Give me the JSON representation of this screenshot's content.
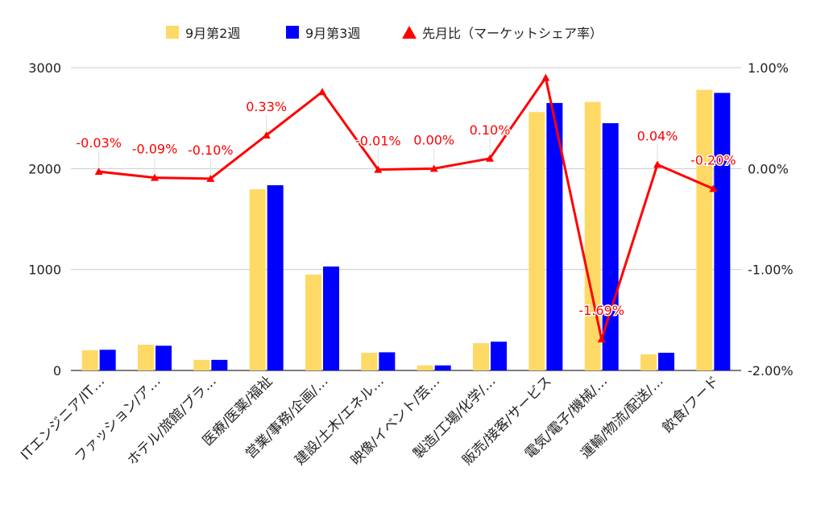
{
  "chart_data": {
    "type": "bar",
    "categories": [
      "ITエンジニア/IT…",
      "ファッション/ア…",
      "ホテル/旅館/ブラ…",
      "医療/医薬/福祉",
      "営業/事務/企画/…",
      "建設/土木/エネル…",
      "映像/イベント/芸…",
      "製造/工場/化学/…",
      "販売/接客/サービス",
      "電気/電子/機械/…",
      "運輸/物流/配送/…",
      "飲食/フード"
    ],
    "series": [
      {
        "name": "9月第2週",
        "type": "bar",
        "axis": "left",
        "color": "#FFD966",
        "values": [
          200,
          255,
          105,
          1795,
          950,
          175,
          50,
          270,
          2560,
          2660,
          160,
          2780
        ]
      },
      {
        "name": "9月第3週",
        "type": "bar",
        "axis": "left",
        "color": "#0000FF",
        "values": [
          205,
          245,
          105,
          1835,
          1030,
          180,
          50,
          285,
          2650,
          2450,
          175,
          2750
        ]
      },
      {
        "name": "先月比（マーケットシェア率）",
        "type": "line",
        "axis": "right",
        "color": "#FF0000",
        "values": [
          -0.03,
          -0.09,
          -0.1,
          0.33,
          0.76,
          -0.01,
          0.0,
          0.1,
          0.9,
          -1.69,
          0.04,
          -0.2
        ],
        "labels": [
          "-0.03%",
          "-0.09%",
          "-0.10%",
          "0.33%",
          "",
          "-0.01%",
          "0.00%",
          "0.10%",
          "",
          "-1.69%",
          "0.04%",
          "-0.20%"
        ]
      }
    ],
    "left_axis": {
      "min": 0,
      "max": 3000,
      "ticks": [
        "0",
        "1000",
        "2000",
        "3000"
      ]
    },
    "right_axis": {
      "min": -2.0,
      "max": 1.0,
      "ticks": [
        "-2.00%",
        "-1.00%",
        "0.00%",
        "1.00%"
      ]
    },
    "grid": true,
    "legend_position": "top"
  }
}
